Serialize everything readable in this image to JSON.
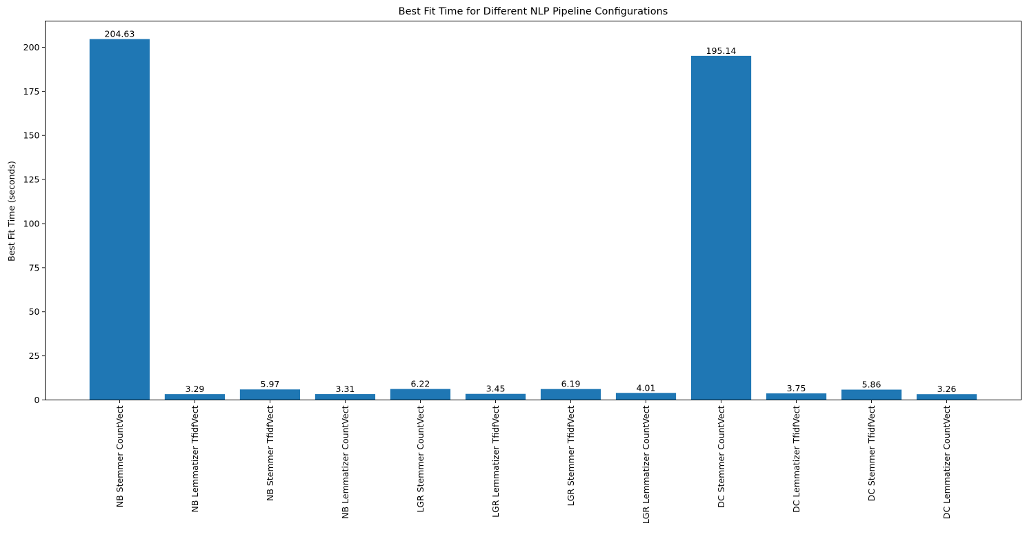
{
  "chart_data": {
    "type": "bar",
    "title": "Best Fit Time for Different NLP Pipeline Configurations",
    "xlabel": "",
    "ylabel": "Best Fit Time (seconds)",
    "categories": [
      "NB Stemmer CountVect",
      "NB Lemmatizer TfidfVect",
      "NB Stemmer TfidfVect",
      "NB Lemmatizer CountVect",
      "LGR Stemmer CountVect",
      "LGR Lemmatizer TfidfVect",
      "LGR Stemmer TfidfVect",
      "LGR Lemmatizer CountVect",
      "DC Stemmer CountVect",
      "DC Lemmatizer TfidfVect",
      "DC Stemmer TfidfVect",
      "DC Lemmatizer CountVect"
    ],
    "values": [
      204.63,
      3.29,
      5.97,
      3.31,
      6.22,
      3.45,
      6.19,
      4.01,
      195.14,
      3.75,
      5.86,
      3.26
    ],
    "data_labels": [
      "204.63",
      "3.29",
      "5.97",
      "3.31",
      "6.22",
      "3.45",
      "6.19",
      "4.01",
      "195.14",
      "3.75",
      "5.86",
      "3.26"
    ],
    "ylim": [
      0,
      214.86
    ],
    "yticks": [
      0,
      25,
      50,
      75,
      100,
      125,
      150,
      175,
      200
    ],
    "bar_color": "#1f77b4",
    "grid": false,
    "legend": "none"
  }
}
